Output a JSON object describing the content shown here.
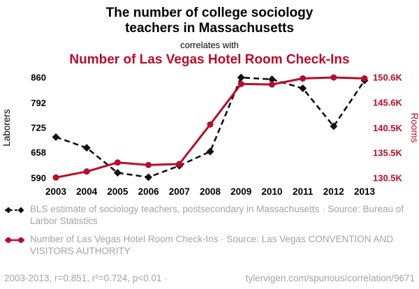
{
  "header": {
    "title": "The number of college sociology teachers in Massachusetts",
    "connector": "correlates with",
    "title2": "Number of Las Vegas Hotel Room Check-Ins"
  },
  "colors": {
    "accent_red": "#b90c2a",
    "series_black": "#111111",
    "legend_gray": "#a3a3a3"
  },
  "chart_data": {
    "type": "line",
    "x": [
      2003,
      2004,
      2005,
      2006,
      2007,
      2008,
      2009,
      2010,
      2011,
      2012,
      2013
    ],
    "left_axis": {
      "label": "Laborers",
      "ticks": [
        590,
        658,
        725,
        792,
        860
      ],
      "min": 590,
      "max": 860
    },
    "right_axis": {
      "label": "Rooms",
      "ticks": [
        "130.5K",
        "135.5K",
        "140.5K",
        "145.6K",
        "150.6K"
      ],
      "tick_values": [
        130.5,
        135.5,
        140.5,
        145.6,
        150.6
      ],
      "min": 130.5,
      "max": 150.6
    },
    "series": [
      {
        "name": "BLS estimate of sociology teachers, postsecondary in Massachusetts",
        "axis": "left",
        "style": "dashed",
        "marker": "diamond",
        "color": "#111111",
        "values": [
          700,
          671,
          604,
          592,
          623,
          661,
          860,
          855,
          831,
          729,
          852
        ]
      },
      {
        "name": "Number of Las Vegas Hotel Room Check-Ins",
        "axis": "right",
        "style": "solid",
        "marker": "circle",
        "color": "#b90c2a",
        "values": [
          130.6,
          131.8,
          133.6,
          133.1,
          133.3,
          141.2,
          149.3,
          149.2,
          150.4,
          150.6,
          150.4
        ]
      }
    ]
  },
  "legend": [
    {
      "label": "BLS estimate of sociology teachers, postsecondary in Massachusetts · Source: Bureau of Larbor Statistics"
    },
    {
      "label": "Number of Las Vegas Hotel Room Check-Ins · Source: Las Vegas CONVENTION AND VISITORS AUTHORITY"
    }
  ],
  "footer": {
    "stats": "2003-2013, r=0.851, r²=0.724, p<0.01 ·",
    "link": "tylervigen.com/spurious/correlation/9671"
  }
}
